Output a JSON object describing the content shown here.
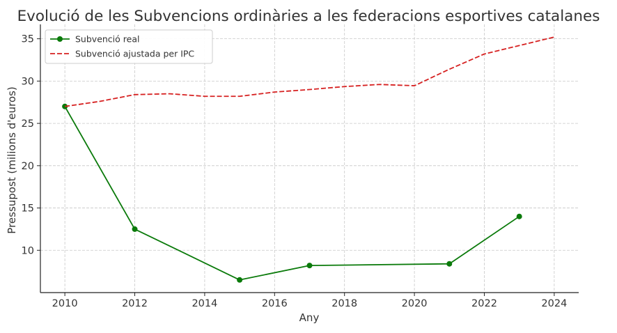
{
  "chart_data": {
    "type": "line",
    "title": "Evolució de les Subvencions ordinàries a les federacions esportives catalanes",
    "xlabel": "Any",
    "ylabel": "Pressupost (milions d'euros)",
    "xlim": [
      2009.3,
      2024.7
    ],
    "ylim": [
      5.0,
      36.7
    ],
    "x_ticks": [
      2010,
      2012,
      2014,
      2016,
      2018,
      2020,
      2022,
      2024
    ],
    "y_ticks": [
      10,
      15,
      20,
      25,
      30,
      35
    ],
    "grid": true,
    "legend_position": "top-left",
    "series": [
      {
        "name": "Subvenció real",
        "color": "#0a7a0a",
        "style": "solid",
        "marker": "circle",
        "x": [
          2010,
          2012,
          2015,
          2017,
          2021,
          2023
        ],
        "y": [
          27.0,
          12.5,
          6.5,
          8.2,
          8.4,
          14.0
        ]
      },
      {
        "name": "Subvenció ajustada per IPC",
        "color": "#d62020",
        "style": "dashed",
        "marker": "none",
        "x": [
          2010,
          2011,
          2012,
          2013,
          2014,
          2015,
          2016,
          2017,
          2018,
          2019,
          2020,
          2021,
          2022,
          2023,
          2024
        ],
        "y": [
          27.0,
          27.6,
          28.4,
          28.5,
          28.2,
          28.2,
          28.7,
          29.0,
          29.35,
          29.6,
          29.45,
          31.4,
          33.2,
          34.2,
          35.2
        ]
      }
    ]
  }
}
